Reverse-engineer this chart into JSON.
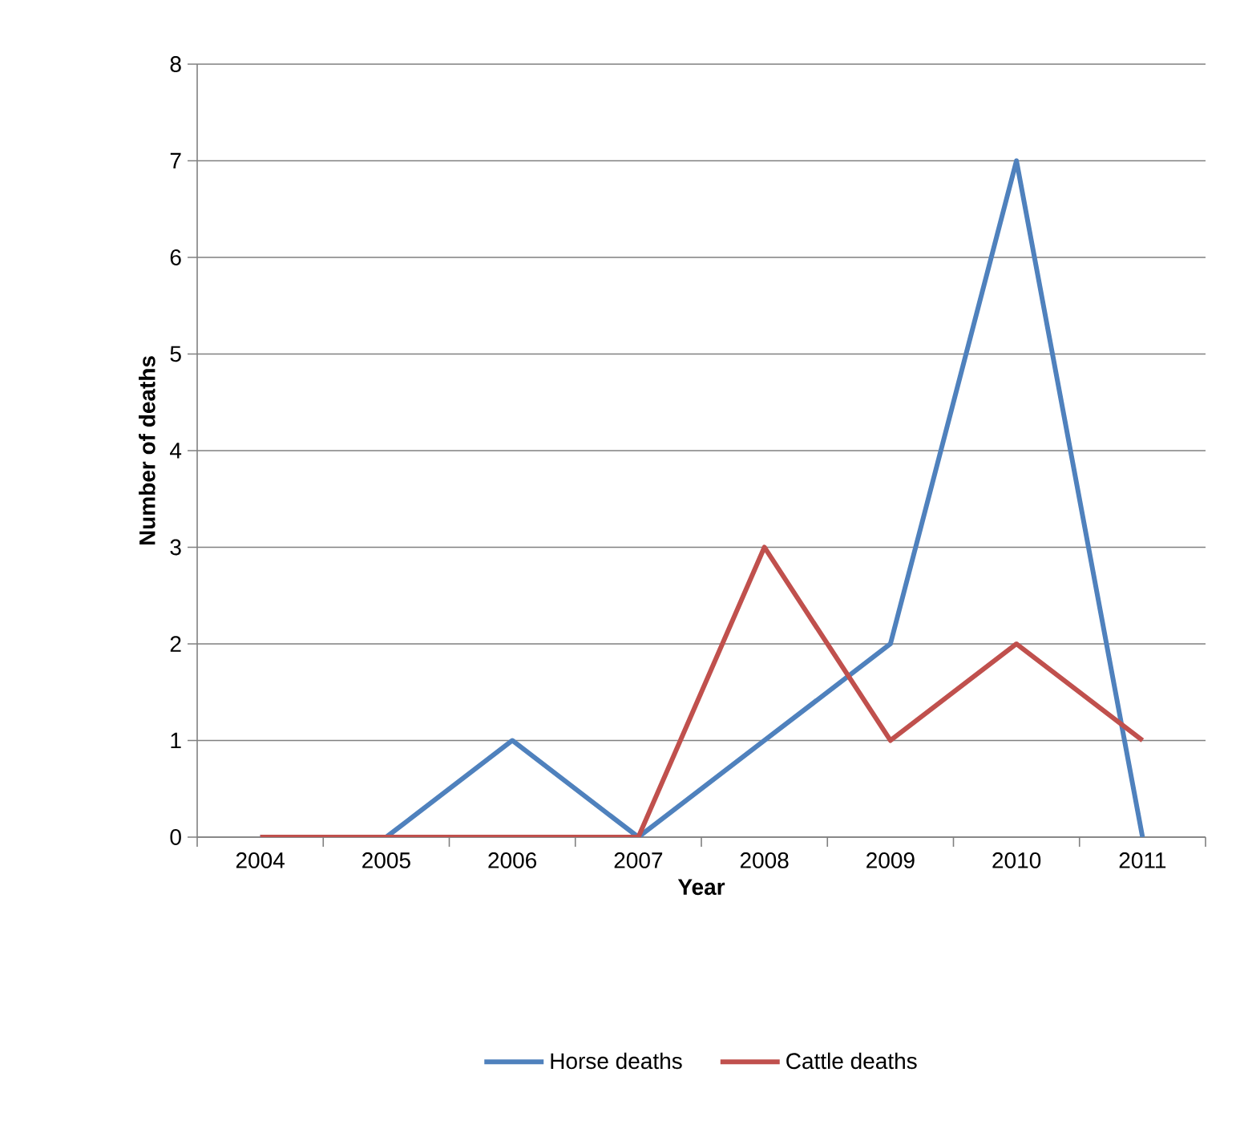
{
  "chart_data": {
    "type": "line",
    "xlabel": "Year",
    "ylabel": "Number of deaths",
    "categories": [
      "2004",
      "2005",
      "2006",
      "2007",
      "2008",
      "2009",
      "2010",
      "2011"
    ],
    "series": [
      {
        "name": "Horse deaths",
        "color": "#4f81bd",
        "values": [
          0,
          0,
          1,
          0,
          1,
          2,
          7,
          0
        ]
      },
      {
        "name": "Cattle deaths",
        "color": "#c0504d",
        "values": [
          0,
          0,
          0,
          0,
          3,
          1,
          2,
          1
        ]
      }
    ],
    "ylim": [
      0,
      8
    ],
    "yticks": [
      0,
      1,
      2,
      3,
      4,
      5,
      6,
      7,
      8
    ],
    "grid": "y",
    "legend": "bottom",
    "marker": "none",
    "line_style": "solid"
  }
}
